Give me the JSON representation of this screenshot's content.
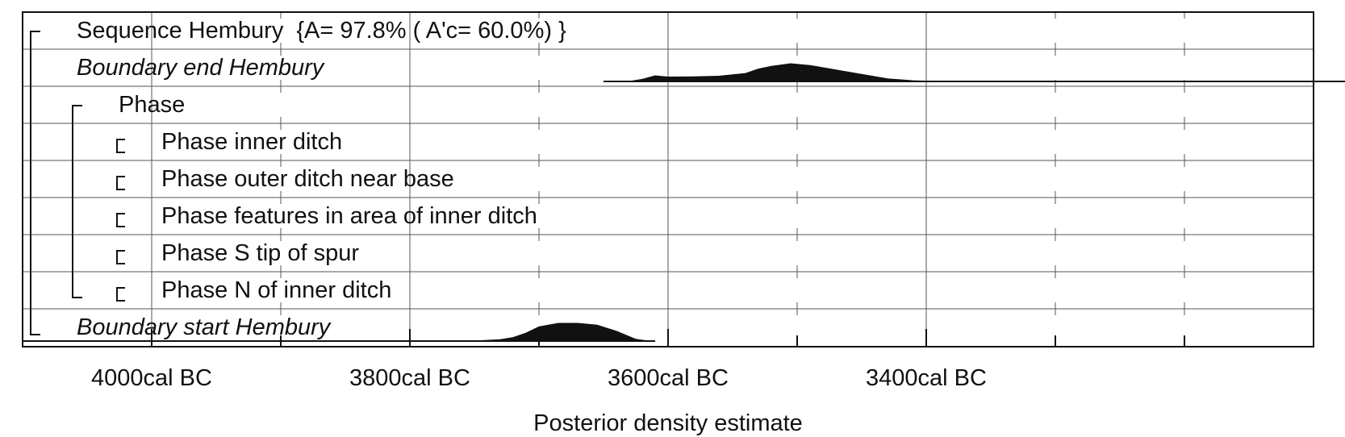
{
  "chart_data": {
    "type": "area",
    "title": "",
    "xlabel": "Posterior density estimate",
    "ylabel": "",
    "x_axis": {
      "unit": "cal BC",
      "range": [
        4100,
        3100
      ],
      "reversed": true,
      "minor_step": 100,
      "labeled_ticks": [
        4000,
        3800,
        3600,
        3400
      ],
      "tick_labels": [
        "4000cal BC",
        "3800cal BC",
        "3600cal BC",
        "3400cal BC"
      ]
    },
    "grid": true,
    "rows": [
      {
        "label": "Sequence Hembury",
        "stats": "{A= 97.8% ( A'c= 60.0%) }",
        "italic": false,
        "indent": 0,
        "bracket": "sequence-start"
      },
      {
        "label": "Boundary end Hembury",
        "italic": true,
        "indent": 0
      },
      {
        "label": "Phase",
        "italic": false,
        "indent": 1,
        "bracket": "phase-start"
      },
      {
        "label": "Phase inner ditch",
        "italic": false,
        "indent": 2,
        "bracket": "sub"
      },
      {
        "label": "Phase outer ditch near base",
        "italic": false,
        "indent": 2,
        "bracket": "sub"
      },
      {
        "label": "Phase features in area of inner ditch",
        "italic": false,
        "indent": 2,
        "bracket": "sub"
      },
      {
        "label": "Phase S tip of spur",
        "italic": false,
        "indent": 2,
        "bracket": "sub"
      },
      {
        "label": "Phase N of inner ditch",
        "italic": false,
        "indent": 2,
        "bracket": "sub"
      },
      {
        "label": "Boundary start Hembury",
        "italic": true,
        "indent": 0
      }
    ],
    "series": [
      {
        "name": "Boundary end Hembury",
        "row": 1,
        "range": [
          3650,
          3000
        ],
        "density": [
          [
            3650,
            0
          ],
          [
            3630,
            0
          ],
          [
            3620,
            0.12
          ],
          [
            3610,
            0.32
          ],
          [
            3600,
            0.25
          ],
          [
            3580,
            0.26
          ],
          [
            3560,
            0.3
          ],
          [
            3540,
            0.45
          ],
          [
            3530,
            0.7
          ],
          [
            3520,
            0.85
          ],
          [
            3505,
            1.0
          ],
          [
            3490,
            0.9
          ],
          [
            3470,
            0.65
          ],
          [
            3450,
            0.4
          ],
          [
            3430,
            0.15
          ],
          [
            3410,
            0.04
          ],
          [
            3390,
            0
          ],
          [
            3000,
            0
          ]
        ]
      },
      {
        "name": "Boundary start Hembury",
        "row": 8,
        "range": [
          4100,
          3610
        ],
        "density": [
          [
            4100,
            0
          ],
          [
            3760,
            0
          ],
          [
            3745,
            0.02
          ],
          [
            3730,
            0.08
          ],
          [
            3720,
            0.2
          ],
          [
            3710,
            0.45
          ],
          [
            3700,
            0.8
          ],
          [
            3685,
            1.0
          ],
          [
            3670,
            1.0
          ],
          [
            3655,
            0.9
          ],
          [
            3640,
            0.55
          ],
          [
            3625,
            0.1
          ],
          [
            3615,
            0
          ],
          [
            3610,
            0
          ]
        ]
      }
    ]
  }
}
